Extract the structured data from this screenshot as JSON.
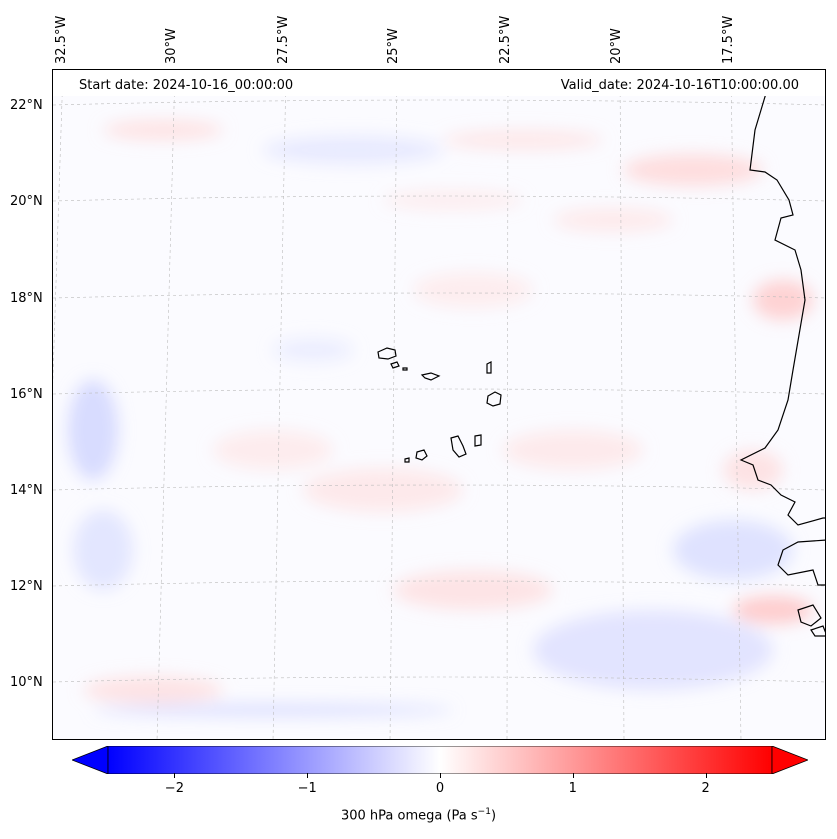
{
  "map": {
    "start_date": "Start date: 2024-10-16_00:00:00",
    "valid_date": "Valid_date: 2024-10-16T10:00:00.00",
    "lon_labels": [
      "32.5°W",
      "30°W",
      "27.5°W",
      "25°W",
      "22.5°W",
      "20°W",
      "17.5°W"
    ],
    "lat_labels": [
      "22°N",
      "20°N",
      "18°N",
      "16°N",
      "14°N",
      "12°N",
      "10°N"
    ]
  },
  "colorbar": {
    "title": "300 hPa omega (Pa s",
    "title_sup": "−1",
    "title_end": ")",
    "tick_labels": [
      "−2",
      "−1",
      "0",
      "1",
      "2"
    ],
    "tick_values": [
      -2,
      -1,
      0,
      1,
      2
    ],
    "vmin": -2.5,
    "vmax": 2.5,
    "color_low": "#0000ff",
    "color_mid": "#ffffff",
    "color_high": "#ff0000"
  },
  "colors": {
    "coastline": "#000000",
    "gridline": "#bbbbbb"
  }
}
